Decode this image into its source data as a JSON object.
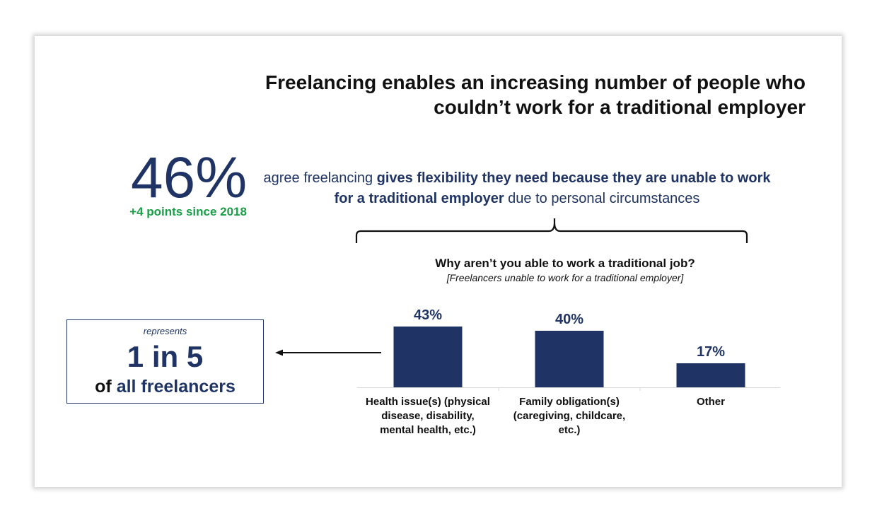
{
  "title_line1": "Freelancing enables an increasing number of people who",
  "title_line2": "couldn’t work for a traditional employer",
  "stat": {
    "value": "46%",
    "change": "+4 points since 2018",
    "desc_part1": "agree freelancing ",
    "desc_bold": "gives flexibility they need because they are unable to work for a traditional employer",
    "desc_part2": " due to personal circumstances"
  },
  "question": {
    "title": "Why aren’t you able to work a traditional job?",
    "subtitle": "[Freelancers unable to work for a traditional employer]"
  },
  "represents": {
    "label": "represents",
    "value": "1 in 5",
    "of": "of ",
    "of_highlight": "all freelancers"
  },
  "colors": {
    "navy": "#1f3464",
    "green": "#1a9e48"
  },
  "chart_data": {
    "type": "bar",
    "categories": [
      [
        "Health issue(s) (physical",
        "disease, disability,",
        "mental health, etc.)"
      ],
      [
        "Family obligation(s)",
        "(caregiving, childcare,",
        "etc.)"
      ],
      [
        "Other"
      ]
    ],
    "values": [
      43,
      40,
      17
    ],
    "value_labels": [
      "43%",
      "40%",
      "17%"
    ],
    "ylim": [
      0,
      43
    ],
    "grid": false,
    "color": "#1f3464"
  }
}
